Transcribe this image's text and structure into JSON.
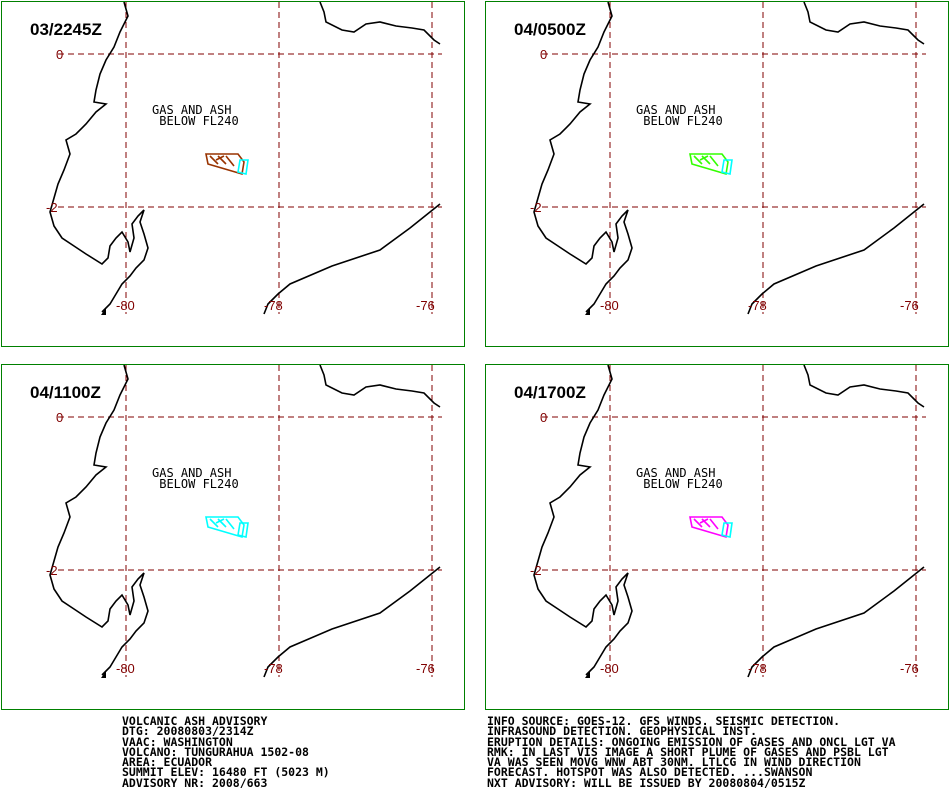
{
  "panels": [
    {
      "time": "03/2245Z",
      "plume_color": "#993300"
    },
    {
      "time": "04/0500Z",
      "plume_color": "#33ff00"
    },
    {
      "time": "04/1100Z",
      "plume_color": "#00ffff"
    },
    {
      "time": "04/1700Z",
      "plume_color": "#ff00ff"
    }
  ],
  "colors": {
    "frame": "#008000",
    "grid": "#800000",
    "coast": "#000000",
    "hotspot": "#00ffff"
  },
  "map_labels": {
    "line1": "GAS AND ASH",
    "line2": " BELOW FL240"
  },
  "ticks": {
    "lat_0": "0",
    "lat_2": "-2",
    "lon_80": "-80",
    "lon_78": "-78",
    "lon_76": "-76"
  },
  "advisory_left": [
    "VOLCANIC ASH ADVISORY",
    "DTG: 20080803/2314Z",
    "VAAC: WASHINGTON",
    "VOLCANO: TUNGURAHUA 1502-08",
    "AREA: ECUADOR",
    "SUMMIT ELEV: 16480 FT (5023 M)",
    "ADVISORY NR: 2008/663"
  ],
  "advisory_right": [
    "INFO SOURCE: GOES-12. GFS WINDS. SEISMIC DETECTION.",
    "INFRASOUND DETECTION. GEOPHYSICAL INST.",
    "ERUPTION DETAILS: ONGOING EMISSION OF GASES AND ONCL LGT VA",
    "RMK: IN LAST VIS IMAGE A SHORT PLUME OF GASES AND PSBL LGT",
    "VA WAS SEEN MOVG WNW ABT 30NM. LTLCG IN WIND DIRECTION",
    "FORECAST. HOTSPOT WAS ALSO DETECTED. ...SWANSON",
    "NXT ADVISORY: WILL BE ISSUED BY 20080804/0515Z"
  ]
}
